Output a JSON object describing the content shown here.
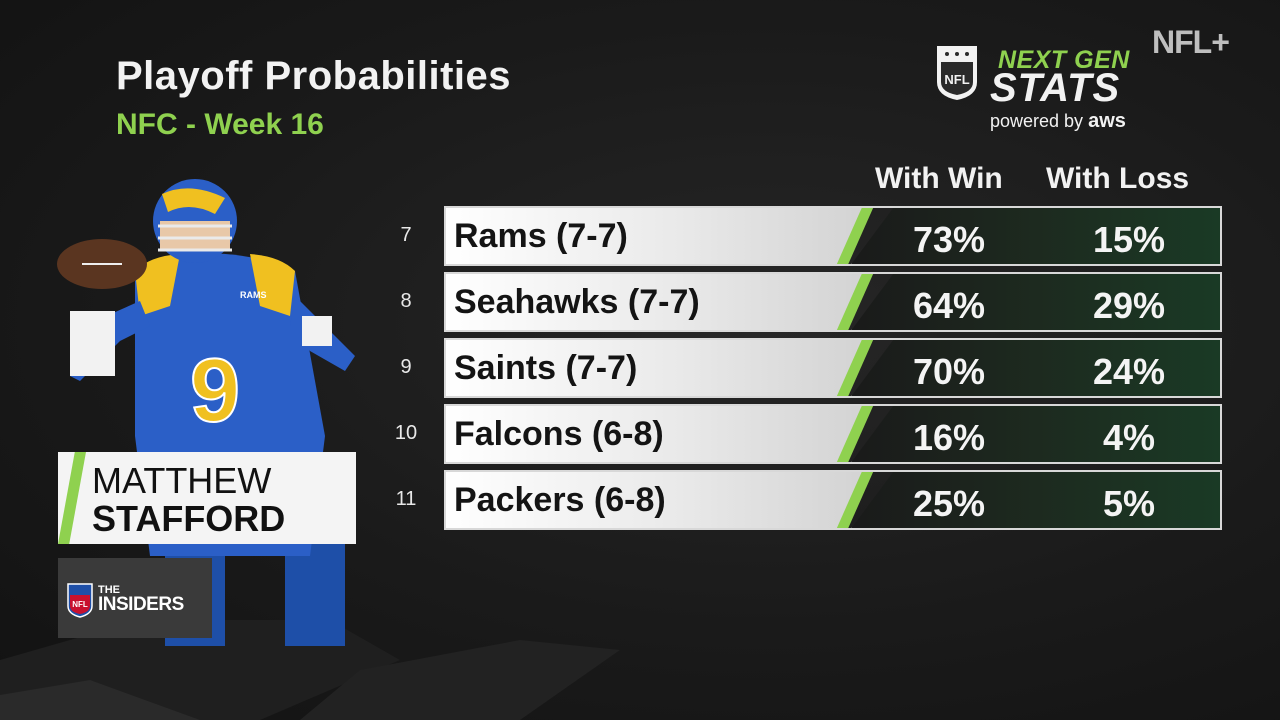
{
  "header": {
    "title": "Playoff Probabilities",
    "subtitle": "NFC - Week 16"
  },
  "branding": {
    "next_gen": "NEXT GEN",
    "stats": "STATS",
    "powered_by": "powered by",
    "aws": "aws",
    "nfl_plus": "NFL+",
    "shield_text": "NFL",
    "accent_color": "#8fd14f"
  },
  "player": {
    "first_name": "MATTHEW",
    "last_name": "STAFFORD",
    "jersey_number": "9",
    "helmet_text": "RAMS"
  },
  "show": {
    "the": "THE",
    "name": "INSIDERS"
  },
  "table": {
    "columns": [
      "With Win",
      "With Loss"
    ],
    "rows": [
      {
        "rank": "7",
        "team": "Rams (7-7)",
        "with_win": "73%",
        "with_loss": "15%"
      },
      {
        "rank": "8",
        "team": "Seahawks (7-7)",
        "with_win": "64%",
        "with_loss": "29%"
      },
      {
        "rank": "9",
        "team": "Saints (7-7)",
        "with_win": "70%",
        "with_loss": "24%"
      },
      {
        "rank": "10",
        "team": "Falcons (6-8)",
        "with_win": "16%",
        "with_loss": "4%"
      },
      {
        "rank": "11",
        "team": "Packers (6-8)",
        "with_win": "25%",
        "with_loss": "5%"
      }
    ]
  }
}
